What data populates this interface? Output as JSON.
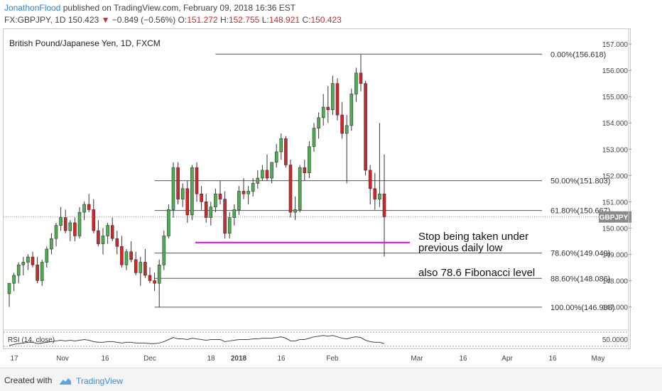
{
  "header": {
    "author": "JonathonFlood",
    "published": "published on TradingView.com, February 09, 2018 16:36 EST",
    "symbol": "FX:GBPJPY, 1D",
    "last": "150.423",
    "arrow": "▼",
    "change": "−0.849 (−0.56%)",
    "o_label": "O:",
    "o_value": "151.272",
    "h_label": "H:",
    "h_value": "152.755",
    "l_label": "L:",
    "l_value": "148.921",
    "c_label": "C:",
    "c_value": "150.423"
  },
  "footer": {
    "created_with": "Created with",
    "brand": "TradingView"
  },
  "colors": {
    "bull": "#4caf50",
    "bear": "#d3262b",
    "fib_line": "#555555",
    "support_line": "#e600e6",
    "price_tag": "#8a8a8a"
  },
  "chart_data": {
    "type": "candlestick",
    "title": "British Pound/Japanese Yen, 1D, FXCM",
    "price_tag": {
      "label": "GBPJPY",
      "value": "150.423"
    },
    "ylim": [
      146.5,
      157.3
    ],
    "y_ticks": [
      "157.000",
      "156.000",
      "155.000",
      "154.000",
      "153.000",
      "152.000",
      "151.000",
      "150.000",
      "149.000",
      "148.000",
      "147.000"
    ],
    "x_ticks": [
      "17",
      "Nov",
      "16",
      "Dec",
      "18",
      "2018",
      "16",
      "Feb",
      "Mar",
      "16",
      "Apr",
      "16",
      "May"
    ],
    "fibonacci": [
      {
        "label": "0.00%(156.618)",
        "value": 156.618
      },
      {
        "label": "50.00%(151.803)",
        "value": 151.803
      },
      {
        "label": "61.80%(150.667)",
        "value": 150.667
      },
      {
        "label": "78.60%(149.049)",
        "value": 149.049
      },
      {
        "label": "88.60%(148.086)",
        "value": 148.086
      },
      {
        "label": "100.00%(146.988)",
        "value": 146.988
      }
    ],
    "support_level": 149.45,
    "annotations": [
      "Stop being taken under",
      "previous daily low",
      "also 78.6 Fibonacci level"
    ],
    "candles": [
      [
        147.5,
        147.9,
        147.0,
        147.9
      ],
      [
        147.9,
        148.3,
        147.6,
        148.2
      ],
      [
        148.2,
        148.7,
        147.9,
        148.6
      ],
      [
        148.6,
        148.9,
        148.2,
        148.7
      ],
      [
        148.7,
        149.0,
        148.4,
        148.9
      ],
      [
        148.9,
        149.1,
        148.5,
        148.6
      ],
      [
        148.6,
        148.9,
        147.9,
        148.0
      ],
      [
        148.0,
        148.8,
        147.8,
        148.7
      ],
      [
        148.7,
        149.3,
        148.5,
        149.2
      ],
      [
        149.2,
        149.8,
        149.0,
        149.6
      ],
      [
        149.6,
        150.2,
        149.3,
        150.1
      ],
      [
        150.1,
        150.8,
        149.9,
        150.4
      ],
      [
        150.4,
        150.7,
        149.8,
        149.9
      ],
      [
        149.9,
        150.3,
        149.5,
        150.2
      ],
      [
        150.2,
        150.4,
        149.5,
        149.7
      ],
      [
        149.7,
        150.8,
        149.6,
        150.6
      ],
      [
        150.6,
        151.0,
        150.3,
        150.9
      ],
      [
        150.9,
        151.3,
        150.6,
        150.7
      ],
      [
        150.7,
        151.1,
        149.8,
        149.9
      ],
      [
        149.9,
        150.3,
        149.3,
        149.4
      ],
      [
        149.4,
        150.0,
        149.0,
        149.7
      ],
      [
        149.7,
        150.2,
        149.4,
        150.1
      ],
      [
        150.1,
        150.4,
        149.5,
        149.6
      ],
      [
        149.6,
        149.9,
        149.0,
        149.3
      ],
      [
        149.3,
        149.7,
        148.5,
        148.6
      ],
      [
        148.6,
        149.2,
        148.4,
        149.1
      ],
      [
        149.1,
        149.5,
        148.7,
        148.8
      ],
      [
        148.8,
        149.1,
        148.2,
        148.3
      ],
      [
        148.3,
        148.9,
        147.8,
        148.7
      ],
      [
        148.7,
        149.2,
        148.1,
        148.2
      ],
      [
        148.2,
        148.5,
        147.9,
        148.0
      ],
      [
        148.0,
        148.3,
        147.6,
        147.9
      ],
      [
        147.9,
        148.8,
        146.99,
        148.6
      ],
      [
        148.6,
        149.9,
        148.4,
        149.7
      ],
      [
        149.7,
        150.9,
        149.6,
        150.7
      ],
      [
        150.7,
        152.5,
        150.4,
        152.3
      ],
      [
        152.3,
        152.5,
        150.9,
        151.1
      ],
      [
        151.1,
        151.7,
        150.8,
        151.5
      ],
      [
        151.5,
        151.8,
        150.2,
        150.5
      ],
      [
        150.5,
        152.4,
        150.3,
        152.3
      ],
      [
        152.3,
        152.5,
        151.0,
        151.3
      ],
      [
        151.3,
        151.6,
        150.7,
        151.0
      ],
      [
        151.0,
        151.3,
        150.2,
        150.4
      ],
      [
        150.4,
        151.0,
        150.1,
        150.8
      ],
      [
        150.8,
        151.5,
        150.6,
        151.3
      ],
      [
        151.3,
        151.8,
        150.9,
        151.1
      ],
      [
        151.1,
        151.4,
        149.6,
        149.8
      ],
      [
        149.8,
        150.6,
        149.6,
        150.4
      ],
      [
        150.4,
        150.9,
        150.1,
        150.7
      ],
      [
        150.7,
        151.6,
        150.5,
        151.4
      ],
      [
        151.4,
        151.9,
        151.1,
        151.3
      ],
      [
        151.3,
        151.6,
        150.9,
        151.4
      ],
      [
        151.4,
        151.9,
        151.2,
        151.7
      ],
      [
        151.7,
        152.2,
        151.5,
        151.9
      ],
      [
        151.9,
        152.4,
        151.8,
        152.2
      ],
      [
        152.2,
        152.8,
        151.8,
        151.9
      ],
      [
        151.9,
        152.5,
        151.7,
        152.5
      ],
      [
        152.5,
        153.2,
        152.3,
        152.9
      ],
      [
        152.9,
        153.6,
        152.6,
        153.4
      ],
      [
        153.4,
        153.5,
        152.3,
        152.4
      ],
      [
        152.4,
        152.6,
        150.4,
        150.6
      ],
      [
        150.6,
        151.2,
        150.3,
        150.7
      ],
      [
        150.7,
        152.4,
        150.6,
        152.3
      ],
      [
        152.3,
        152.6,
        151.8,
        152.1
      ],
      [
        152.1,
        153.3,
        151.9,
        153.1
      ],
      [
        153.1,
        154.0,
        152.9,
        153.8
      ],
      [
        153.8,
        154.4,
        153.4,
        154.2
      ],
      [
        154.2,
        155.1,
        153.9,
        154.6
      ],
      [
        154.6,
        155.4,
        154.0,
        154.5
      ],
      [
        154.5,
        155.8,
        154.3,
        155.5
      ],
      [
        155.5,
        155.7,
        154.1,
        154.3
      ],
      [
        154.3,
        154.8,
        153.4,
        153.6
      ],
      [
        153.6,
        154.3,
        151.7,
        153.9
      ],
      [
        153.9,
        155.3,
        153.7,
        155.1
      ],
      [
        155.1,
        156.1,
        154.8,
        155.9
      ],
      [
        155.9,
        156.6,
        155.2,
        155.5
      ],
      [
        155.5,
        155.6,
        152.0,
        152.2
      ],
      [
        152.2,
        152.4,
        150.9,
        151.5
      ],
      [
        151.5,
        152.1,
        150.7,
        151.1
      ],
      [
        151.1,
        154.0,
        150.8,
        151.3
      ],
      [
        151.3,
        152.8,
        148.92,
        150.42
      ]
    ],
    "rsi": {
      "label": "RSI (14, close)",
      "tick": "50.0000",
      "values": [
        44,
        46,
        47,
        48,
        49,
        49,
        47,
        48,
        49,
        50,
        51,
        52,
        51,
        52,
        51,
        52,
        53,
        52,
        50,
        49,
        49,
        50,
        50,
        49,
        48,
        49,
        49,
        48,
        48,
        48,
        47,
        47,
        48,
        50,
        53,
        56,
        54,
        54,
        53,
        55,
        54,
        53,
        52,
        53,
        53,
        53,
        50,
        51,
        52,
        53,
        53,
        53,
        54,
        54,
        55,
        55,
        55,
        56,
        57,
        55,
        51,
        51,
        53,
        53,
        55,
        57,
        58,
        59,
        58,
        59,
        57,
        55,
        54,
        56,
        57,
        56,
        52,
        50,
        49,
        49,
        47
      ]
    }
  }
}
